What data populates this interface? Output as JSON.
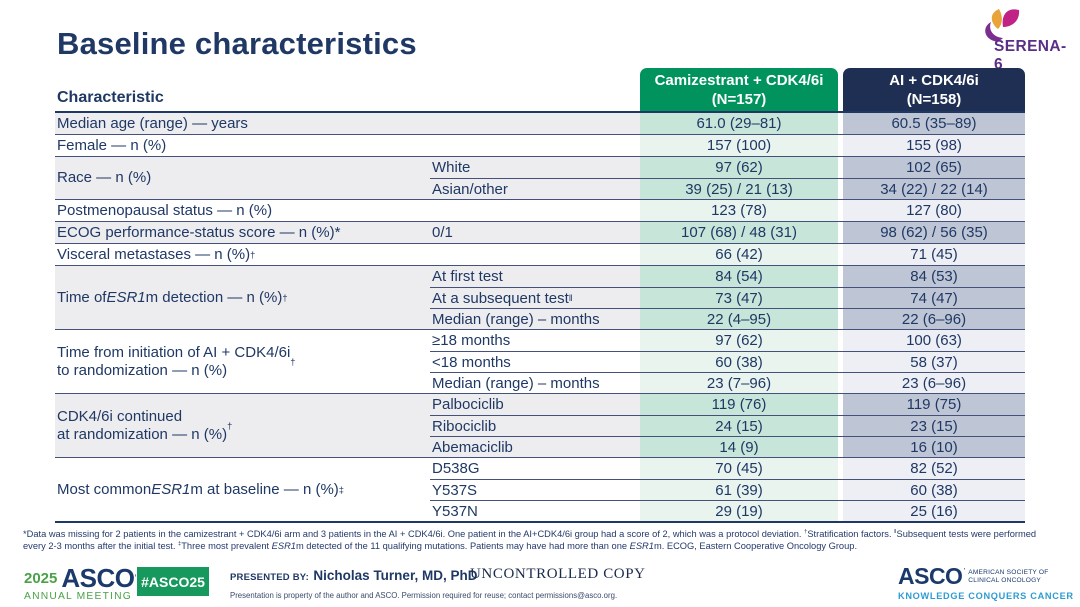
{
  "slide": {
    "title": "Baseline characteristics",
    "trial_name": "SERENA-6"
  },
  "colors": {
    "navy_text": "#1F3864",
    "header_green": "#00935E",
    "header_navy": "#1F2F54",
    "cell_green_dark": "#C7E5D9",
    "cell_green_light": "#E9F4EF",
    "cell_blue_dark": "#BEC5D5",
    "cell_blue_light": "#EDEFF5",
    "label_shaded": "#EDEDEF",
    "asco_green": "#4AA147",
    "badge_green": "#17995E",
    "tagline_blue": "#2E9BD1",
    "serena_purple": "#5A2E87",
    "serena_petals": [
      "#E8A33B",
      "#C02286",
      "#7B2E8E"
    ]
  },
  "table": {
    "characteristic_header": "Characteristic",
    "columns": [
      {
        "label": "Camizestrant + CDK4/6i",
        "sublabel": "(N=157)"
      },
      {
        "label": "AI + CDK4/6i",
        "sublabel": "(N=158)"
      }
    ],
    "groups": [
      {
        "label": "Median age (range) — years",
        "shaded": true,
        "rows": [
          {
            "sublabel": "",
            "v1": "61.0 (29–81)",
            "v2": "60.5 (35–89)"
          }
        ]
      },
      {
        "label": "Female — n (%)",
        "shaded": false,
        "rows": [
          {
            "sublabel": "",
            "v1": "157 (100)",
            "v2": "155 (98)"
          }
        ]
      },
      {
        "label": "Race — n (%)",
        "shaded": true,
        "rows": [
          {
            "sublabel": "White",
            "v1": "97 (62)",
            "v2": "102 (65)"
          },
          {
            "sublabel": "Asian/other",
            "v1": "39 (25) / 21 (13)",
            "v2": "34 (22) / 22 (14)"
          }
        ]
      },
      {
        "label": "Postmenopausal status — n (%)",
        "shaded": false,
        "rows": [
          {
            "sublabel": "",
            "v1": "123 (78)",
            "v2": "127 (80)"
          }
        ]
      },
      {
        "label": "ECOG performance-status score — n (%)*",
        "shaded": true,
        "rows": [
          {
            "sublabel": "0/1",
            "v1": "107 (68) / 48 (31)",
            "v2": "98 (62) / 56 (35)"
          }
        ]
      },
      {
        "label": "Visceral metastases — n (%)^†^",
        "shaded": false,
        "rows": [
          {
            "sublabel": "",
            "v1": "66 (42)",
            "v2": "71 (45)"
          }
        ]
      },
      {
        "label": "Time of *ESR1*m detection — n (%)^†^",
        "shaded": true,
        "rows": [
          {
            "sublabel": "At first test",
            "v1": "84 (54)",
            "v2": "84 (53)"
          },
          {
            "sublabel": "At a subsequent test^‖^",
            "v1": "73 (47)",
            "v2": "74 (47)"
          },
          {
            "sublabel": "Median (range) – months",
            "v1": "22 (4–95)",
            "v2": "22 (6–96)"
          }
        ]
      },
      {
        "label": "Time from initiation of AI + CDK4/6i\nto randomization — n (%)^†^",
        "shaded": false,
        "rows": [
          {
            "sublabel": "≥18 months",
            "v1": "97 (62)",
            "v2": "100 (63)"
          },
          {
            "sublabel": "<18 months",
            "v1": "60 (38)",
            "v2": "58 (37)"
          },
          {
            "sublabel": "Median (range) – months",
            "v1": "23 (7–96)",
            "v2": "23 (6–96)"
          }
        ]
      },
      {
        "label": "CDK4/6i continued\nat randomization — n (%)^†^",
        "shaded": true,
        "rows": [
          {
            "sublabel": "Palbociclib",
            "v1": "119 (76)",
            "v2": "119 (75)"
          },
          {
            "sublabel": "Ribociclib",
            "v1": "24 (15)",
            "v2": "23 (15)"
          },
          {
            "sublabel": "Abemaciclib",
            "v1": "14 (9)",
            "v2": "16 (10)"
          }
        ]
      },
      {
        "label": "Most common *ESR1*m at baseline — n (%)^‡^",
        "shaded": false,
        "rows": [
          {
            "sublabel": "D538G",
            "v1": "70 (45)",
            "v2": "82 (52)"
          },
          {
            "sublabel": "Y537S",
            "v1": "61 (39)",
            "v2": "60 (38)"
          },
          {
            "sublabel": "Y537N",
            "v1": "29 (19)",
            "v2": "25 (16)"
          }
        ]
      }
    ]
  },
  "footnotes": [
    "*Data was missing for 2 patients in the camizestrant + CDK4/6i arm and 3 patients in the AI + CDK4/6i. One patient in the AI+CDK4/6i group had a score of 2, which was a protocol deviation. ^†^Stratification factors. ^‖^Subsequent tests were performed",
    "every 2-3 months after the initial test. ^‡^Three most prevalent *ESR1*m detected of the 11 qualifying mutations. Patients may have had more than one *ESR1*m. ECOG, Eastern Cooperative Oncology Group."
  ],
  "footer": {
    "meeting_logo": {
      "year": "2025",
      "name": "ASCO",
      "subtitle": "ANNUAL MEETING"
    },
    "hashtag": "#ASCO25",
    "presented_by_label": "PRESENTED BY:",
    "presenter": "Nicholas Turner, MD, PhD",
    "permission_note": "Presentation is property of the author and ASCO. Permission required for reuse; contact permissions@asco.org.",
    "watermark": "UNCONTROLLED COPY",
    "org_logo": {
      "name": "ASCO",
      "line1": "AMERICAN SOCIETY OF",
      "line2": "CLINICAL ONCOLOGY",
      "tagline": "KNOWLEDGE CONQUERS CANCER"
    }
  }
}
